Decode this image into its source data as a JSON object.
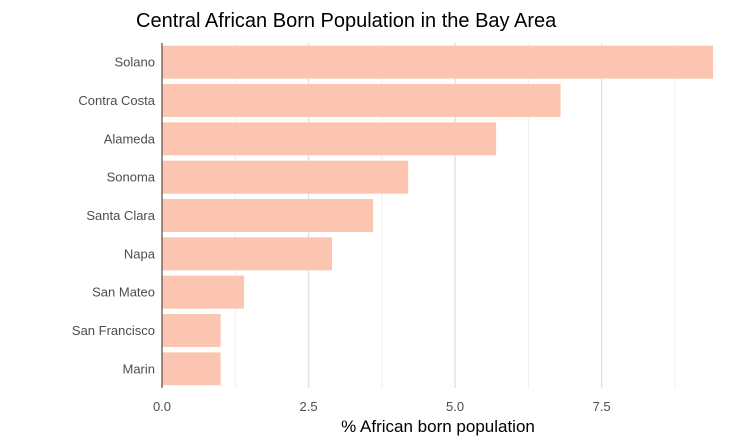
{
  "colors": {
    "bar": "#fcc5b1",
    "grid_major": "#e2e2e2",
    "grid_minor": "#f0f0f0",
    "axis_line": "#333333"
  },
  "chart_data": {
    "type": "bar",
    "orientation": "horizontal",
    "title": "Central African Born Population in the Bay Area",
    "xlabel": "% African born population",
    "ylabel": "",
    "categories": [
      "Solano",
      "Contra Costa",
      "Alameda",
      "Sonoma",
      "Santa Clara",
      "Napa",
      "San Mateo",
      "San Francisco",
      "Marin"
    ],
    "values": [
      9.4,
      6.8,
      5.7,
      4.2,
      3.6,
      2.9,
      1.4,
      1.0,
      1.0
    ],
    "xlim": [
      0,
      9.4
    ],
    "x_ticks": [
      0,
      2.5,
      5,
      7.5
    ],
    "x_tick_labels": [
      "0.0",
      "2.5",
      "5.0",
      "7.5"
    ],
    "grid": true,
    "legend": "none"
  }
}
